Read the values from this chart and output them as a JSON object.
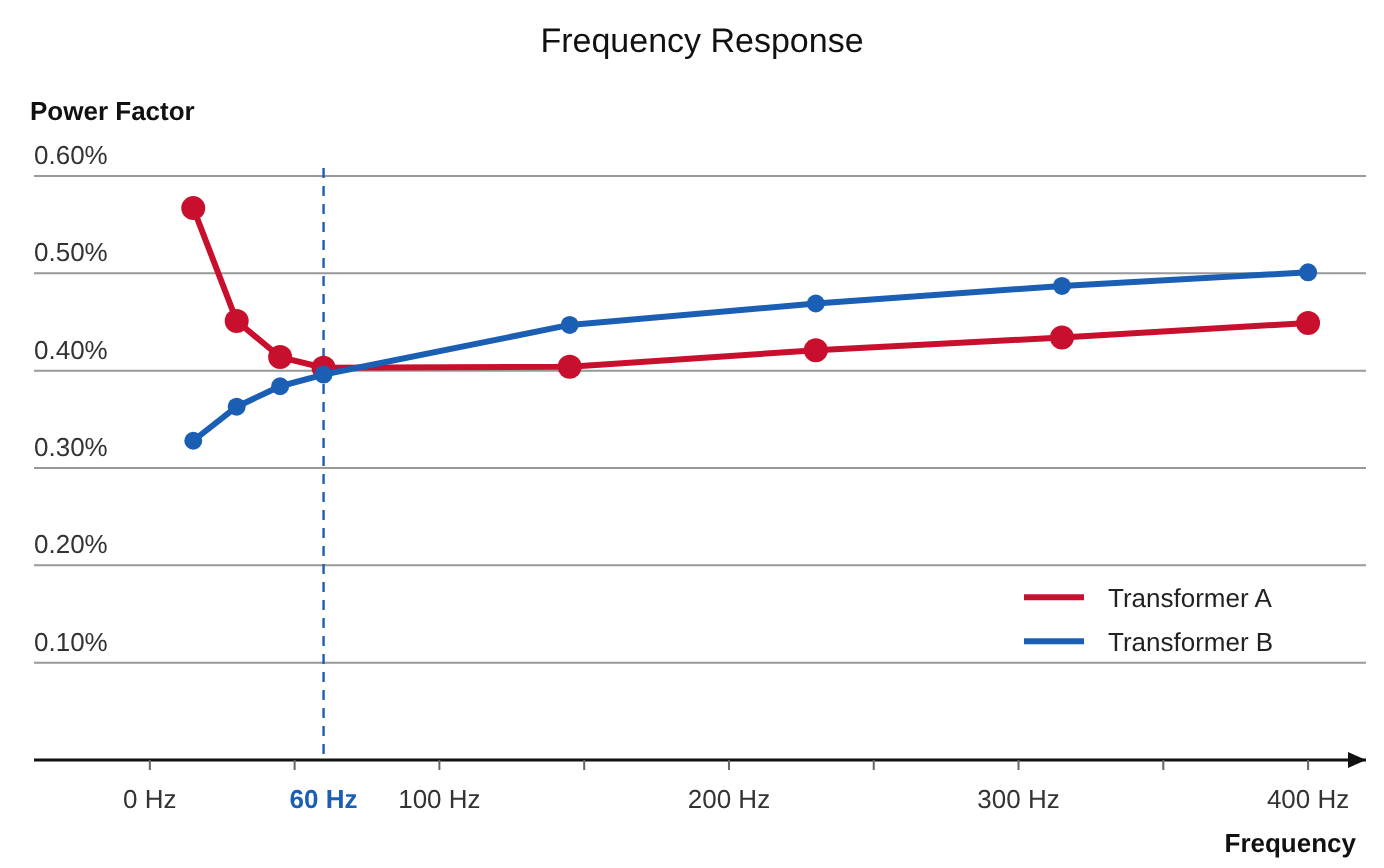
{
  "chart_data": {
    "type": "line",
    "title": "Frequency Response",
    "xlabel": "Frequency",
    "ylabel": "Power Factor",
    "x": [
      15,
      30,
      45,
      60,
      145,
      230,
      315,
      400
    ],
    "series": [
      {
        "name": "Transformer A",
        "color": "#c8102e",
        "values": [
          0.567,
          0.451,
          0.414,
          0.403,
          0.404,
          0.421,
          0.434,
          0.449
        ]
      },
      {
        "name": "Transformer B",
        "color": "#1a5fb4",
        "values": [
          0.328,
          0.363,
          0.384,
          0.396,
          0.447,
          0.469,
          0.487,
          0.501
        ]
      }
    ],
    "xlim": [
      -40,
      420
    ],
    "xticks": [
      {
        "value": 0,
        "label": "0 Hz"
      },
      {
        "value": 50,
        "label": null
      },
      {
        "value": 100,
        "label": "100 Hz"
      },
      {
        "value": 150,
        "label": null
      },
      {
        "value": 200,
        "label": "200 Hz"
      },
      {
        "value": 250,
        "label": null
      },
      {
        "value": 300,
        "label": "300 Hz"
      },
      {
        "value": 350,
        "label": null
      },
      {
        "value": 400,
        "label": "400 Hz"
      }
    ],
    "ylim": [
      0,
      0.6
    ],
    "yticks": [
      {
        "value": 0.1,
        "label": "0.10%"
      },
      {
        "value": 0.2,
        "label": "0.20%"
      },
      {
        "value": 0.3,
        "label": "0.30%"
      },
      {
        "value": 0.4,
        "label": "0.40%"
      },
      {
        "value": 0.5,
        "label": "0.50%"
      },
      {
        "value": 0.6,
        "label": "0.60%"
      }
    ],
    "ref_lines": [
      {
        "axis": "x",
        "value": 60,
        "label": "60 Hz",
        "color": "#1a5fb4",
        "line_style": "dashed"
      }
    ],
    "grid": "y",
    "legend": "bottom right",
    "marker": "circle",
    "line_style": "solid"
  }
}
